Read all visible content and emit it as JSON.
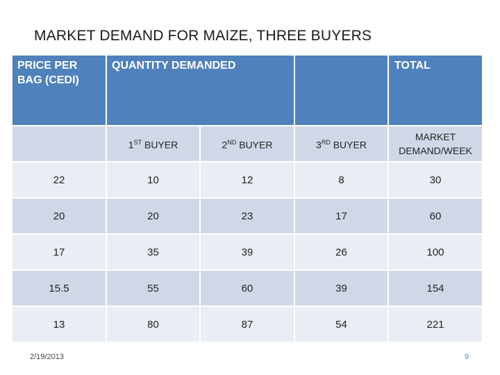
{
  "slide": {
    "title": "MARKET DEMAND FOR MAIZE, THREE BUYERS",
    "date": "2/19/2013",
    "page_number": "9"
  },
  "table": {
    "header": {
      "price": "PRICE PER BAG (CEDI)",
      "quantity": "QUANTITY DEMANDED",
      "total": "TOTAL"
    },
    "subheader": {
      "buyer1_num": "1",
      "buyer1_sup": "ST",
      "buyer1_rest": " BUYER",
      "buyer2_num": "2",
      "buyer2_sup": "ND",
      "buyer2_rest": " BUYER",
      "buyer3_num": "3",
      "buyer3_sup": "RD",
      "buyer3_rest": " BUYER",
      "market": "MARKET DEMAND/WEEK"
    },
    "rows": [
      {
        "price": "22",
        "b1": "10",
        "b2": "12",
        "b3": "8",
        "total": "30"
      },
      {
        "price": "20",
        "b1": "20",
        "b2": "23",
        "b3": "17",
        "total": "60"
      },
      {
        "price": "17",
        "b1": "35",
        "b2": "39",
        "b3": "26",
        "total": "100"
      },
      {
        "price": "15.5",
        "b1": "55",
        "b2": "60",
        "b3": "39",
        "total": "154"
      },
      {
        "price": "13",
        "b1": "80",
        "b2": "87",
        "b3": "54",
        "total": "221"
      }
    ]
  },
  "colors": {
    "header_bg": "#4f81bd",
    "row_light": "#e9edf4",
    "row_dark": "#d0d8e8"
  }
}
